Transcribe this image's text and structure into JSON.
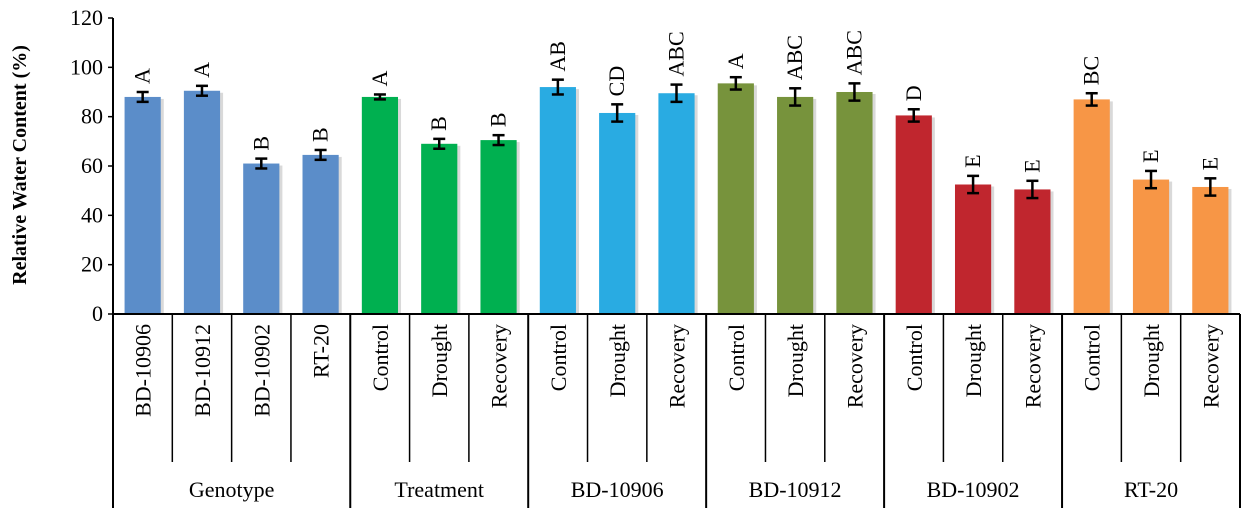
{
  "chart_data": {
    "type": "bar",
    "title": "",
    "xlabel": "",
    "ylabel": "Relative Water Content (%)",
    "ylim": [
      0,
      120
    ],
    "yticks": [
      0,
      20,
      40,
      60,
      80,
      100,
      120
    ],
    "grid": false,
    "legend": "none",
    "groups": [
      {
        "name": "Genotype",
        "color": "#5b8dc9",
        "bars": [
          {
            "category": "BD-10906",
            "value": 88,
            "error": 2,
            "letter": "A"
          },
          {
            "category": "BD-10912",
            "value": 90.5,
            "error": 2,
            "letter": "A"
          },
          {
            "category": "BD-10902",
            "value": 61,
            "error": 2,
            "letter": "B"
          },
          {
            "category": "RT-20",
            "value": 64.5,
            "error": 2,
            "letter": "B"
          }
        ]
      },
      {
        "name": "Treatment",
        "color": "#00b050",
        "bars": [
          {
            "category": "Control",
            "value": 88,
            "error": 1,
            "letter": "A"
          },
          {
            "category": "Drought",
            "value": 69,
            "error": 2,
            "letter": "B"
          },
          {
            "category": "Recovery",
            "value": 70.5,
            "error": 2,
            "letter": "B"
          }
        ]
      },
      {
        "name": "BD-10906",
        "color": "#29abe2",
        "bars": [
          {
            "category": "Control",
            "value": 92,
            "error": 3,
            "letter": "AB"
          },
          {
            "category": "Drought",
            "value": 81.5,
            "error": 3.5,
            "letter": "CD"
          },
          {
            "category": "Recovery",
            "value": 89.5,
            "error": 3.5,
            "letter": "ABC"
          }
        ]
      },
      {
        "name": "BD-10912",
        "color": "#77933c",
        "bars": [
          {
            "category": "Control",
            "value": 93.5,
            "error": 2.5,
            "letter": "A"
          },
          {
            "category": "Drought",
            "value": 88,
            "error": 3.5,
            "letter": "ABC"
          },
          {
            "category": "Recovery",
            "value": 90,
            "error": 3.5,
            "letter": "ABC"
          }
        ]
      },
      {
        "name": "BD-10902",
        "color": "#c0262e",
        "bars": [
          {
            "category": "Control",
            "value": 80.5,
            "error": 2.5,
            "letter": "D"
          },
          {
            "category": "Drought",
            "value": 52.5,
            "error": 3.5,
            "letter": "E"
          },
          {
            "category": "Recovery",
            "value": 50.5,
            "error": 3.5,
            "letter": "E"
          }
        ]
      },
      {
        "name": "RT-20",
        "color": "#f79646",
        "bars": [
          {
            "category": "Control",
            "value": 87,
            "error": 2.5,
            "letter": "BC"
          },
          {
            "category": "Drought",
            "value": 54.5,
            "error": 3.5,
            "letter": "E"
          },
          {
            "category": "Recovery",
            "value": 51.5,
            "error": 3.5,
            "letter": "E"
          }
        ]
      }
    ]
  }
}
